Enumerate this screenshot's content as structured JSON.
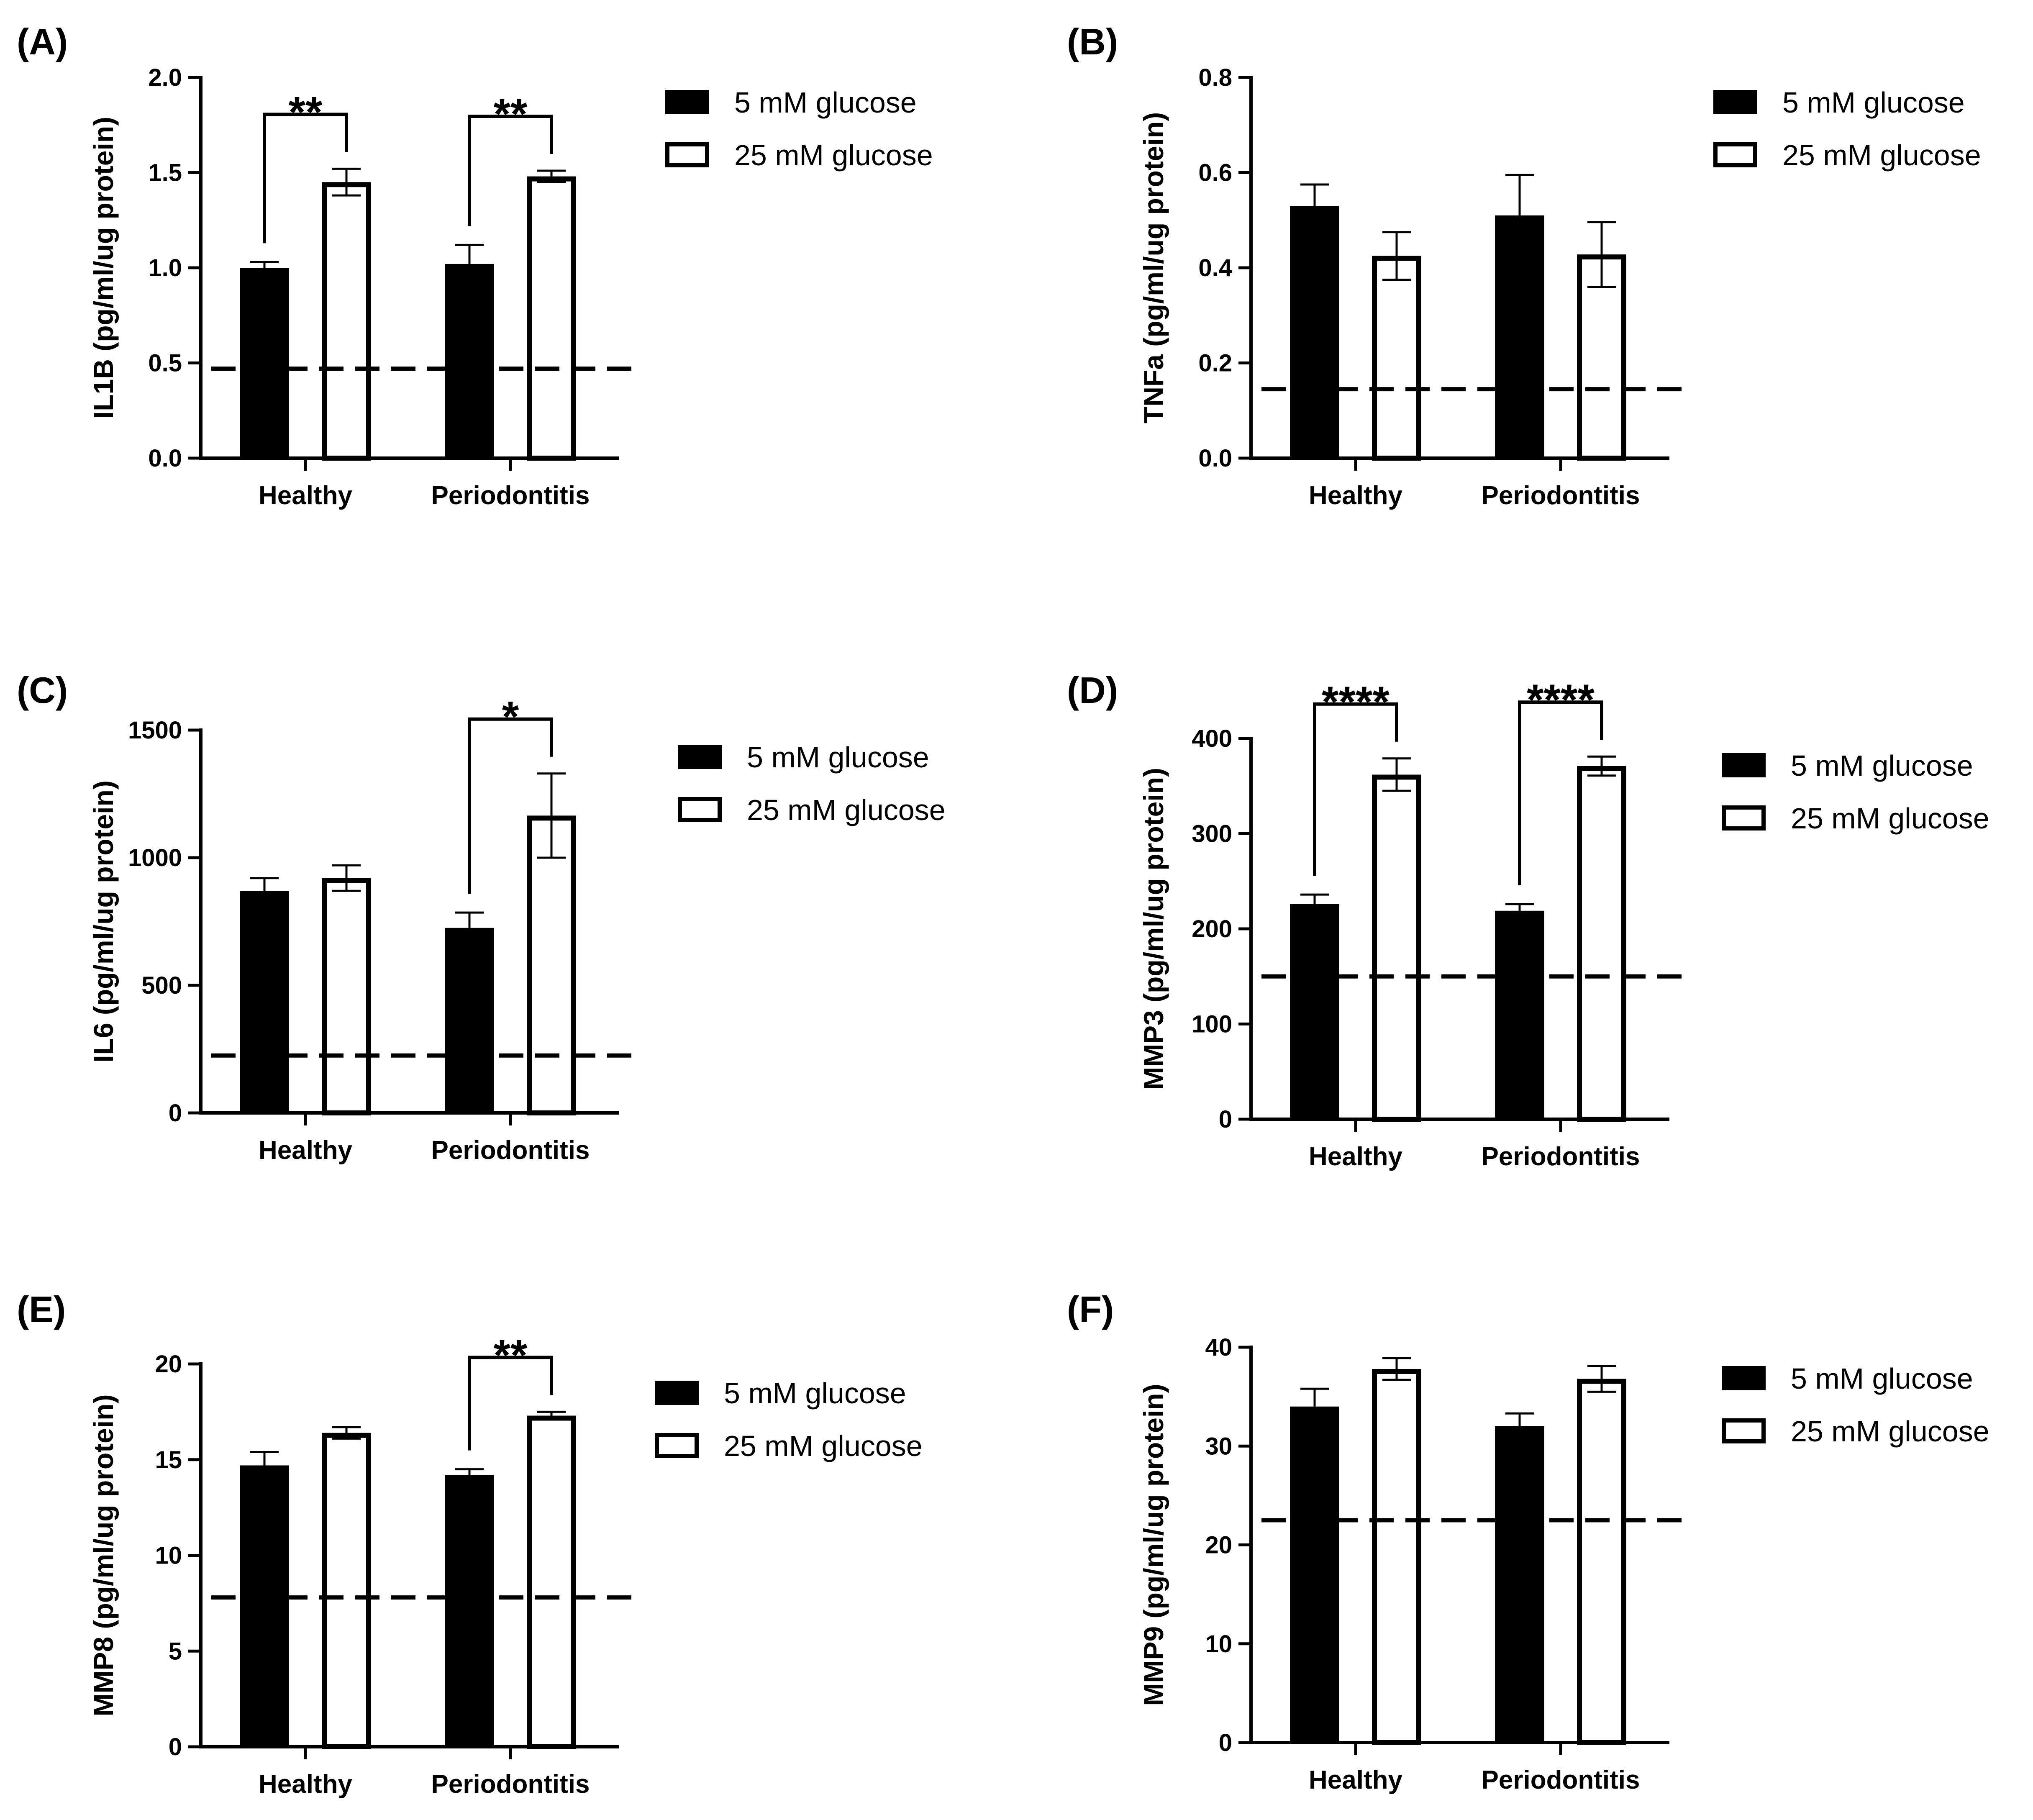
{
  "figure": {
    "legend": {
      "series_low": "5 mM glucose",
      "series_high": "25 mM glucose"
    }
  },
  "chart_data": [
    {
      "panel": "(A)",
      "type": "bar",
      "ylabel": "IL1B (pg/ml/ug protein)",
      "categories": [
        "Healthy",
        "Periodontitis"
      ],
      "series": [
        {
          "name": "5 mM glucose",
          "values": [
            1.0,
            1.02
          ],
          "errors": [
            0.03,
            0.1
          ]
        },
        {
          "name": "25 mM glucose",
          "values": [
            1.45,
            1.48
          ],
          "errors": [
            0.07,
            0.03
          ]
        }
      ],
      "ylim": [
        0,
        2.0
      ],
      "yticks": [
        0.0,
        0.5,
        1.0,
        1.5,
        2.0
      ],
      "ytick_labels": [
        "0.0",
        "0.5",
        "1.0",
        "1.5",
        "2.0"
      ],
      "reference_line": 0.47,
      "significance": [
        {
          "category": "Healthy",
          "label": "**"
        },
        {
          "category": "Periodontitis",
          "label": "**"
        }
      ]
    },
    {
      "panel": "(B)",
      "type": "bar",
      "ylabel": "TNFa (pg/ml/ug protein)",
      "categories": [
        "Healthy",
        "Periodontitis"
      ],
      "series": [
        {
          "name": "5 mM glucose",
          "values": [
            0.53,
            0.51
          ],
          "errors": [
            0.045,
            0.085
          ]
        },
        {
          "name": "25 mM glucose",
          "values": [
            0.425,
            0.428
          ],
          "errors": [
            0.05,
            0.068
          ]
        }
      ],
      "ylim": [
        0,
        0.8
      ],
      "yticks": [
        0.0,
        0.2,
        0.4,
        0.6,
        0.8
      ],
      "ytick_labels": [
        "0.0",
        "0.2",
        "0.4",
        "0.6",
        "0.8"
      ],
      "reference_line": 0.145,
      "significance": []
    },
    {
      "panel": "(C)",
      "type": "bar",
      "ylabel": "IL6 (pg/ml/ug protein)",
      "categories": [
        "Healthy",
        "Periodontitis"
      ],
      "series": [
        {
          "name": "5 mM glucose",
          "values": [
            870,
            725
          ],
          "errors": [
            50,
            60
          ]
        },
        {
          "name": "25 mM glucose",
          "values": [
            920,
            1165
          ],
          "errors": [
            50,
            165
          ]
        }
      ],
      "ylim": [
        0,
        1500
      ],
      "yticks": [
        0,
        500,
        1000,
        1500
      ],
      "ytick_labels": [
        "0",
        "500",
        "1000",
        "1500"
      ],
      "reference_line": 225,
      "significance": [
        {
          "category": "Periodontitis",
          "label": "*"
        }
      ]
    },
    {
      "panel": "(D)",
      "type": "bar",
      "ylabel": "MMP3 (pg/ml/ug protein)",
      "categories": [
        "Healthy",
        "Periodontitis"
      ],
      "series": [
        {
          "name": "5 mM glucose",
          "values": [
            226,
            219
          ],
          "errors": [
            10,
            7
          ]
        },
        {
          "name": "25 mM glucose",
          "values": [
            362,
            371
          ],
          "errors": [
            17,
            10
          ]
        }
      ],
      "ylim": [
        0,
        400
      ],
      "yticks": [
        0,
        100,
        200,
        300,
        400
      ],
      "ytick_labels": [
        "0",
        "100",
        "200",
        "300",
        "400"
      ],
      "reference_line": 150,
      "significance": [
        {
          "category": "Healthy",
          "label": "****"
        },
        {
          "category": "Periodontitis",
          "label": "****"
        }
      ]
    },
    {
      "panel": "(E)",
      "type": "bar",
      "ylabel": "MMP8 (pg/ml/ug protein)",
      "categories": [
        "Healthy",
        "Periodontitis"
      ],
      "series": [
        {
          "name": "5 mM glucose",
          "values": [
            14.7,
            14.2
          ],
          "errors": [
            0.7,
            0.3
          ]
        },
        {
          "name": "25 mM glucose",
          "values": [
            16.4,
            17.3
          ],
          "errors": [
            0.3,
            0.2
          ]
        }
      ],
      "ylim": [
        0,
        20
      ],
      "yticks": [
        0,
        5,
        10,
        15,
        20
      ],
      "ytick_labels": [
        "0",
        "5",
        "10",
        "15",
        "20"
      ],
      "reference_line": 7.8,
      "significance": [
        {
          "category": "Periodontitis",
          "label": "**"
        }
      ]
    },
    {
      "panel": "(F)",
      "type": "bar",
      "ylabel": "MMP9 (pg/ml/ug protein)",
      "categories": [
        "Healthy",
        "Periodontitis"
      ],
      "series": [
        {
          "name": "5 mM glucose",
          "values": [
            34.0,
            32.0
          ],
          "errors": [
            1.8,
            1.3
          ]
        },
        {
          "name": "25 mM glucose",
          "values": [
            37.8,
            36.8
          ],
          "errors": [
            1.1,
            1.3
          ]
        }
      ],
      "ylim": [
        0,
        40
      ],
      "yticks": [
        0,
        10,
        20,
        30,
        40
      ],
      "ytick_labels": [
        "0",
        "10",
        "20",
        "30",
        "40"
      ],
      "reference_line": 22.5,
      "significance": []
    }
  ]
}
